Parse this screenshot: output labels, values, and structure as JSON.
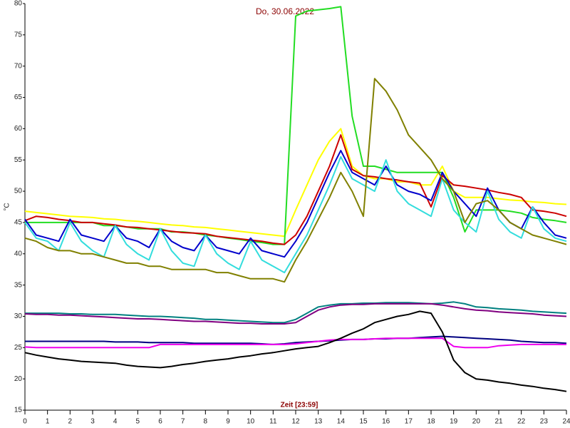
{
  "chart_data": {
    "type": "line",
    "title": "Do, 30.06.2022",
    "x_label": "Zeit [23:59]",
    "y_label": "°C",
    "x": [
      0,
      0.5,
      1,
      1.5,
      2,
      2.5,
      3,
      3.5,
      4,
      4.5,
      5,
      5.5,
      6,
      6.5,
      7,
      7.5,
      8,
      8.5,
      9,
      9.5,
      10,
      10.5,
      11,
      11.5,
      12,
      12.5,
      13,
      13.5,
      14,
      14.5,
      15,
      15.5,
      16,
      16.5,
      17,
      17.5,
      18,
      18.5,
      19,
      19.5,
      20,
      20.5,
      21,
      21.5,
      22,
      22.5,
      23,
      23.5,
      24
    ],
    "xlim": [
      0,
      24
    ],
    "xticks": [
      0,
      1,
      2,
      3,
      4,
      5,
      6,
      7,
      8,
      9,
      10,
      11,
      12,
      13,
      14,
      15,
      16,
      17,
      18,
      19,
      20,
      21,
      22,
      23,
      24
    ],
    "ylim": [
      15,
      80
    ],
    "yticks": [
      15,
      20,
      25,
      30,
      35,
      40,
      45,
      50,
      55,
      60,
      65,
      70,
      75,
      80
    ],
    "grid": false,
    "series": [
      {
        "color": "#ffff00",
        "values": [
          46.8,
          46.6,
          46.4,
          46.2,
          46,
          45.9,
          45.8,
          45.6,
          45.5,
          45.3,
          45.2,
          45,
          44.8,
          44.6,
          44.5,
          44.3,
          44.2,
          44,
          43.8,
          43.6,
          43.4,
          43.2,
          43,
          42.8,
          47,
          51,
          55,
          58,
          60,
          54,
          52.5,
          52,
          52,
          51.5,
          51.5,
          51,
          51,
          54,
          50,
          49,
          49,
          49,
          48.8,
          48.6,
          48.5,
          48.3,
          48.2,
          48,
          47.9
        ]
      },
      {
        "color": "#22dd22",
        "values": [
          45,
          45,
          45,
          45,
          45,
          45,
          45,
          44.5,
          44.5,
          44.3,
          44,
          44,
          44,
          43.5,
          43.5,
          43.3,
          43,
          42.8,
          42.5,
          42.3,
          42,
          41.8,
          41.5,
          41.5,
          78,
          78.8,
          79,
          79.2,
          79.5,
          62,
          54,
          54,
          53.5,
          53,
          53,
          53,
          53,
          53,
          49,
          43.5,
          47,
          47,
          47,
          46.8,
          46.5,
          45.8,
          45.5,
          45.3,
          45
        ]
      },
      {
        "color": "#cc0000",
        "values": [
          45.3,
          46,
          45.8,
          45.5,
          45.3,
          45,
          45,
          44.8,
          44.6,
          44.3,
          44.2,
          44,
          43.8,
          43.6,
          43.4,
          43.3,
          43.2,
          42.8,
          42.6,
          42.4,
          42.2,
          42,
          41.7,
          41.5,
          43,
          46,
          50,
          54,
          59,
          53.5,
          52.5,
          52.3,
          52,
          51.8,
          51.5,
          51.3,
          47.5,
          52.5,
          51,
          50.8,
          50.5,
          50.2,
          49.8,
          49.5,
          49,
          47,
          46.8,
          46.5,
          46
        ]
      },
      {
        "color": "#0000cc",
        "values": [
          45.5,
          43,
          42.5,
          42,
          45.5,
          43,
          42.5,
          42,
          44.5,
          42.5,
          42,
          41,
          44,
          42,
          41,
          40.5,
          43,
          41,
          40.5,
          40,
          42.5,
          40.5,
          40,
          39.5,
          42,
          45,
          49,
          53,
          56.5,
          53,
          52,
          51,
          54,
          51,
          50,
          49.5,
          48.5,
          53,
          50,
          48,
          46,
          50.5,
          47,
          45,
          44,
          47.5,
          45,
          43,
          42.5
        ]
      },
      {
        "color": "#33dddd",
        "values": [
          45,
          42.5,
          42,
          40.5,
          45,
          42,
          40.5,
          39.5,
          44.5,
          41.5,
          40,
          39,
          44,
          40.5,
          38.5,
          38,
          43,
          40,
          38.5,
          37.5,
          42,
          39,
          38,
          37,
          40,
          43,
          47,
          51,
          55.5,
          52,
          51,
          50,
          55,
          50,
          48,
          47,
          46,
          52,
          47,
          45,
          43.5,
          50,
          45.5,
          43.5,
          42.5,
          47.5,
          44,
          42.5,
          42
        ]
      },
      {
        "color": "#808000",
        "values": [
          42.5,
          42,
          41,
          40.5,
          40.5,
          40,
          40,
          39.5,
          39,
          38.5,
          38.5,
          38,
          38,
          37.5,
          37.5,
          37.5,
          37.5,
          37,
          37,
          36.5,
          36,
          36,
          36,
          35.5,
          39,
          42,
          45.5,
          49,
          53,
          50,
          46,
          68,
          66,
          63,
          59,
          57,
          55,
          52,
          50,
          45,
          48,
          48.5,
          47,
          45,
          44,
          43,
          42.5,
          42,
          41.5
        ]
      },
      {
        "color": "#008080",
        "values": [
          30.5,
          30.5,
          30.5,
          30.5,
          30.4,
          30.4,
          30.3,
          30.3,
          30.3,
          30.2,
          30.1,
          30,
          30,
          29.9,
          29.8,
          29.7,
          29.5,
          29.5,
          29.4,
          29.3,
          29.2,
          29.1,
          29,
          29,
          29.5,
          30.5,
          31.5,
          31.8,
          32,
          32,
          32.1,
          32.1,
          32.2,
          32.2,
          32.2,
          32.1,
          32,
          32.1,
          32.3,
          32,
          31.5,
          31.4,
          31.2,
          31.1,
          31,
          30.8,
          30.7,
          30.6,
          30.5
        ]
      },
      {
        "color": "#800080",
        "values": [
          30.4,
          30.3,
          30.3,
          30.2,
          30.2,
          30.1,
          30,
          29.9,
          29.8,
          29.7,
          29.6,
          29.6,
          29.5,
          29.4,
          29.3,
          29.2,
          29.2,
          29.1,
          29,
          28.9,
          28.9,
          28.8,
          28.8,
          28.8,
          29,
          30,
          31,
          31.5,
          31.8,
          31.9,
          31.9,
          32,
          32,
          32,
          32,
          32,
          32,
          31.8,
          31.5,
          31.2,
          31,
          30.9,
          30.7,
          30.6,
          30.5,
          30.4,
          30.2,
          30.1,
          30
        ]
      },
      {
        "color": "#000080",
        "values": [
          26,
          26,
          26,
          26,
          26,
          26,
          26,
          26,
          25.9,
          25.9,
          25.9,
          25.8,
          25.8,
          25.8,
          25.8,
          25.7,
          25.7,
          25.7,
          25.7,
          25.7,
          25.7,
          25.6,
          25.5,
          25.6,
          25.8,
          25.9,
          26,
          26.1,
          26.2,
          26.3,
          26.3,
          26.4,
          26.4,
          26.5,
          26.5,
          26.6,
          26.7,
          26.8,
          26.7,
          26.6,
          26.5,
          26.4,
          26.3,
          26.2,
          26,
          25.9,
          25.8,
          25.8,
          25.7
        ]
      },
      {
        "color": "#ee00ee",
        "values": [
          25.1,
          25,
          25,
          25,
          25,
          25,
          25,
          25,
          25,
          25,
          25,
          25,
          25.5,
          25.5,
          25.5,
          25.5,
          25.5,
          25.5,
          25.5,
          25.5,
          25.5,
          25.5,
          25.5,
          25.5,
          25.6,
          25.8,
          26,
          26.2,
          26.3,
          26.3,
          26.3,
          26.4,
          26.5,
          26.5,
          26.5,
          26.5,
          26.5,
          26.5,
          25.2,
          25,
          25,
          25,
          25.3,
          25.4,
          25.5,
          25.5,
          25.5,
          25.5,
          25.5
        ]
      },
      {
        "color": "#000000",
        "values": [
          24.2,
          23.8,
          23.5,
          23.2,
          23,
          22.8,
          22.7,
          22.6,
          22.5,
          22.2,
          22,
          21.9,
          21.8,
          22,
          22.3,
          22.5,
          22.8,
          23,
          23.2,
          23.5,
          23.7,
          24,
          24.2,
          24.5,
          24.8,
          25,
          25.2,
          25.8,
          26.5,
          27.3,
          28,
          29,
          29.5,
          30,
          30.3,
          30.8,
          30.5,
          27.5,
          23,
          21,
          20,
          19.8,
          19.5,
          19.3,
          19,
          18.8,
          18.5,
          18.3,
          18
        ]
      }
    ]
  }
}
